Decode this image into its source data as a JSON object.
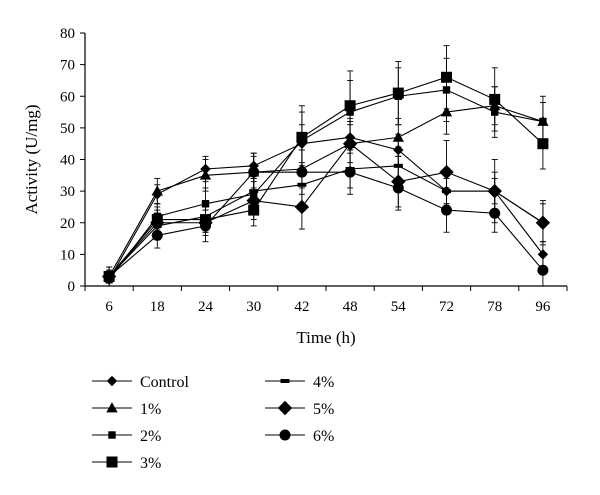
{
  "chart_data": {
    "type": "line",
    "title": "",
    "xlabel": "Time (h)",
    "ylabel": "Activity (U/mg)",
    "categories": [
      "6",
      "18",
      "24",
      "30",
      "42",
      "48",
      "54",
      "72",
      "78",
      "96"
    ],
    "ylim": [
      0,
      80
    ],
    "yticks": [
      0,
      10,
      20,
      30,
      40,
      50,
      60,
      70,
      80
    ],
    "grid": false,
    "legend_position": "bottom",
    "series": [
      {
        "name": "Control",
        "marker": "diamond-small",
        "values": [
          2,
          29,
          37,
          38,
          45,
          47,
          43,
          30,
          30,
          10
        ],
        "errors": [
          2,
          3,
          4,
          4,
          6,
          5,
          5,
          4,
          4,
          4
        ]
      },
      {
        "name": "1%",
        "marker": "triangle",
        "values": [
          3,
          30,
          35,
          36,
          37,
          45,
          47,
          55,
          57,
          52
        ],
        "errors": [
          3,
          4,
          5,
          5,
          6,
          6,
          6,
          7,
          6,
          6
        ]
      },
      {
        "name": "2%",
        "marker": "square-small",
        "values": [
          2,
          22,
          26,
          29,
          46,
          55,
          60,
          62,
          55,
          52
        ],
        "errors": [
          2,
          4,
          5,
          5,
          9,
          10,
          9,
          10,
          8,
          8
        ]
      },
      {
        "name": "3%",
        "marker": "square-large",
        "values": [
          3,
          21,
          21,
          24,
          47,
          57,
          61,
          66,
          59,
          45
        ],
        "errors": [
          3,
          4,
          4,
          5,
          10,
          11,
          10,
          10,
          10,
          8
        ]
      },
      {
        "name": "4%",
        "marker": "dash",
        "values": [
          3,
          19,
          22,
          30,
          32,
          37,
          38,
          30,
          30,
          20
        ],
        "errors": [
          2,
          4,
          5,
          6,
          6,
          6,
          6,
          7,
          6,
          6
        ]
      },
      {
        "name": "5%",
        "marker": "diamond-large",
        "values": [
          3,
          20,
          20,
          27,
          25,
          45,
          33,
          36,
          30,
          20
        ],
        "errors": [
          3,
          4,
          4,
          6,
          7,
          8,
          8,
          10,
          10,
          7
        ]
      },
      {
        "name": "6%",
        "marker": "circle",
        "values": [
          3,
          16,
          19,
          36,
          36,
          36,
          31,
          24,
          23,
          5
        ],
        "errors": [
          2,
          4,
          5,
          6,
          7,
          7,
          7,
          7,
          6,
          5
        ]
      }
    ]
  }
}
